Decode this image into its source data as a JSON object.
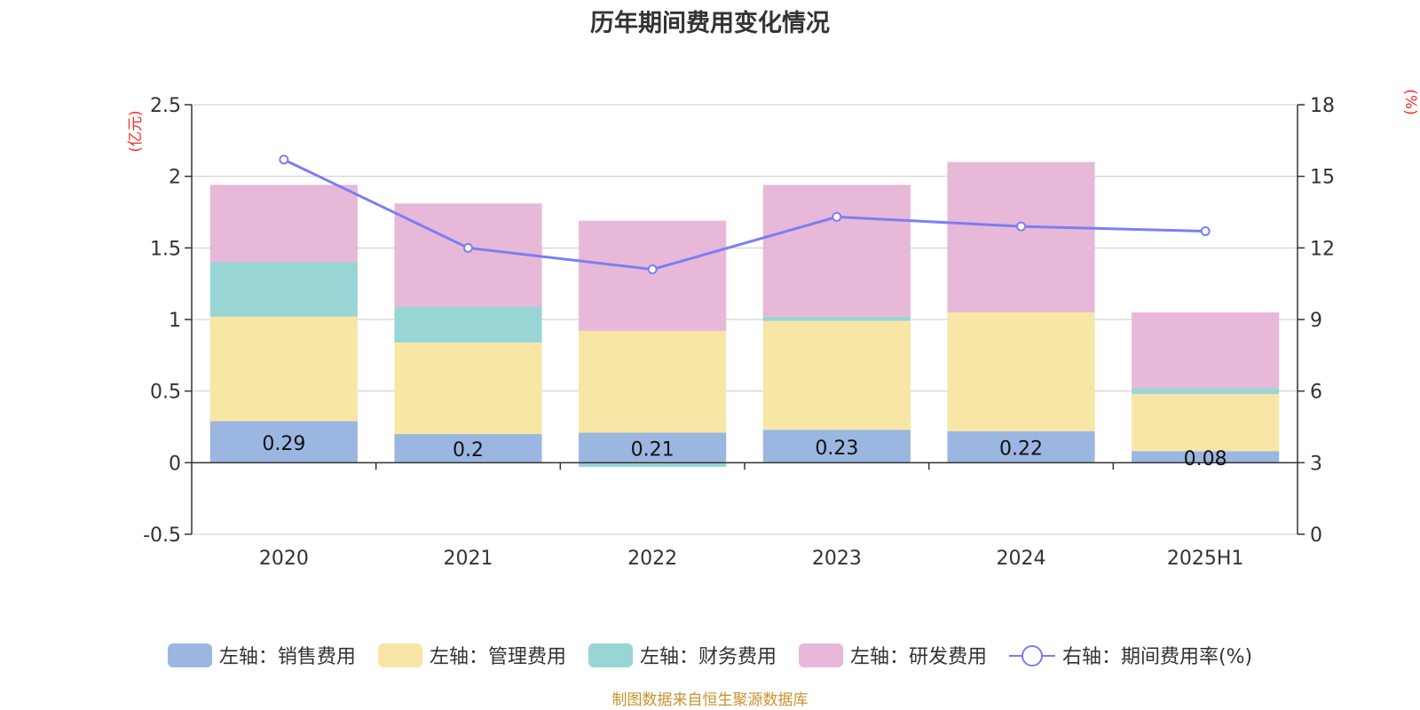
{
  "title": "历年期间费用变化情况",
  "source": "制图数据来自恒生聚源数据库",
  "chart_data": {
    "type": "bar",
    "stacked": true,
    "categories": [
      "2020",
      "2021",
      "2022",
      "2023",
      "2024",
      "2025H1"
    ],
    "left_axis": {
      "label": "(亿元)",
      "ticks": [
        "-0.5",
        "0",
        "0.5",
        "1",
        "1.5",
        "2",
        "2.5"
      ],
      "min": -0.5,
      "max": 2.5
    },
    "right_axis": {
      "label": "(%)",
      "ticks": [
        "0",
        "3",
        "6",
        "9",
        "12",
        "15",
        "18"
      ],
      "min": 0,
      "max": 18
    },
    "grid": true,
    "legend_position": "bottom",
    "series": [
      {
        "name": "左轴：销售费用",
        "axis": "left",
        "color": "#9bb6e0",
        "values": [
          0.29,
          0.2,
          0.21,
          0.23,
          0.22,
          0.08
        ]
      },
      {
        "name": "左轴：管理费用",
        "axis": "left",
        "color": "#f8e6a6",
        "values": [
          0.73,
          0.64,
          0.71,
          0.76,
          0.83,
          0.4
        ]
      },
      {
        "name": "左轴：财务费用",
        "axis": "left",
        "color": "#98d5d4",
        "values": [
          0.38,
          0.25,
          -0.03,
          0.03,
          0.0,
          0.04
        ]
      },
      {
        "name": "左轴：研发费用",
        "axis": "left",
        "color": "#e7b8d8",
        "values": [
          0.54,
          0.72,
          0.77,
          0.92,
          1.05,
          0.53
        ]
      },
      {
        "name": "右轴：期间费用率(%)",
        "axis": "right",
        "type": "line",
        "color": "#7b7ef5",
        "values": [
          15.7,
          12.0,
          11.1,
          13.3,
          12.9,
          12.7
        ]
      }
    ],
    "data_labels": [
      "0.29",
      "0.2",
      "0.21",
      "0.23",
      "0.22",
      "0.08"
    ]
  },
  "legend": [
    {
      "label": "左轴：销售费用",
      "color": "#9bb6e0",
      "kind": "bar"
    },
    {
      "label": "左轴：管理费用",
      "color": "#f8e6a6",
      "kind": "bar"
    },
    {
      "label": "左轴：财务费用",
      "color": "#98d5d4",
      "kind": "bar"
    },
    {
      "label": "左轴：研发费用",
      "color": "#e7b8d8",
      "kind": "bar"
    },
    {
      "label": "右轴：期间费用率(%)",
      "color": "#7b7ef5",
      "kind": "line"
    }
  ]
}
